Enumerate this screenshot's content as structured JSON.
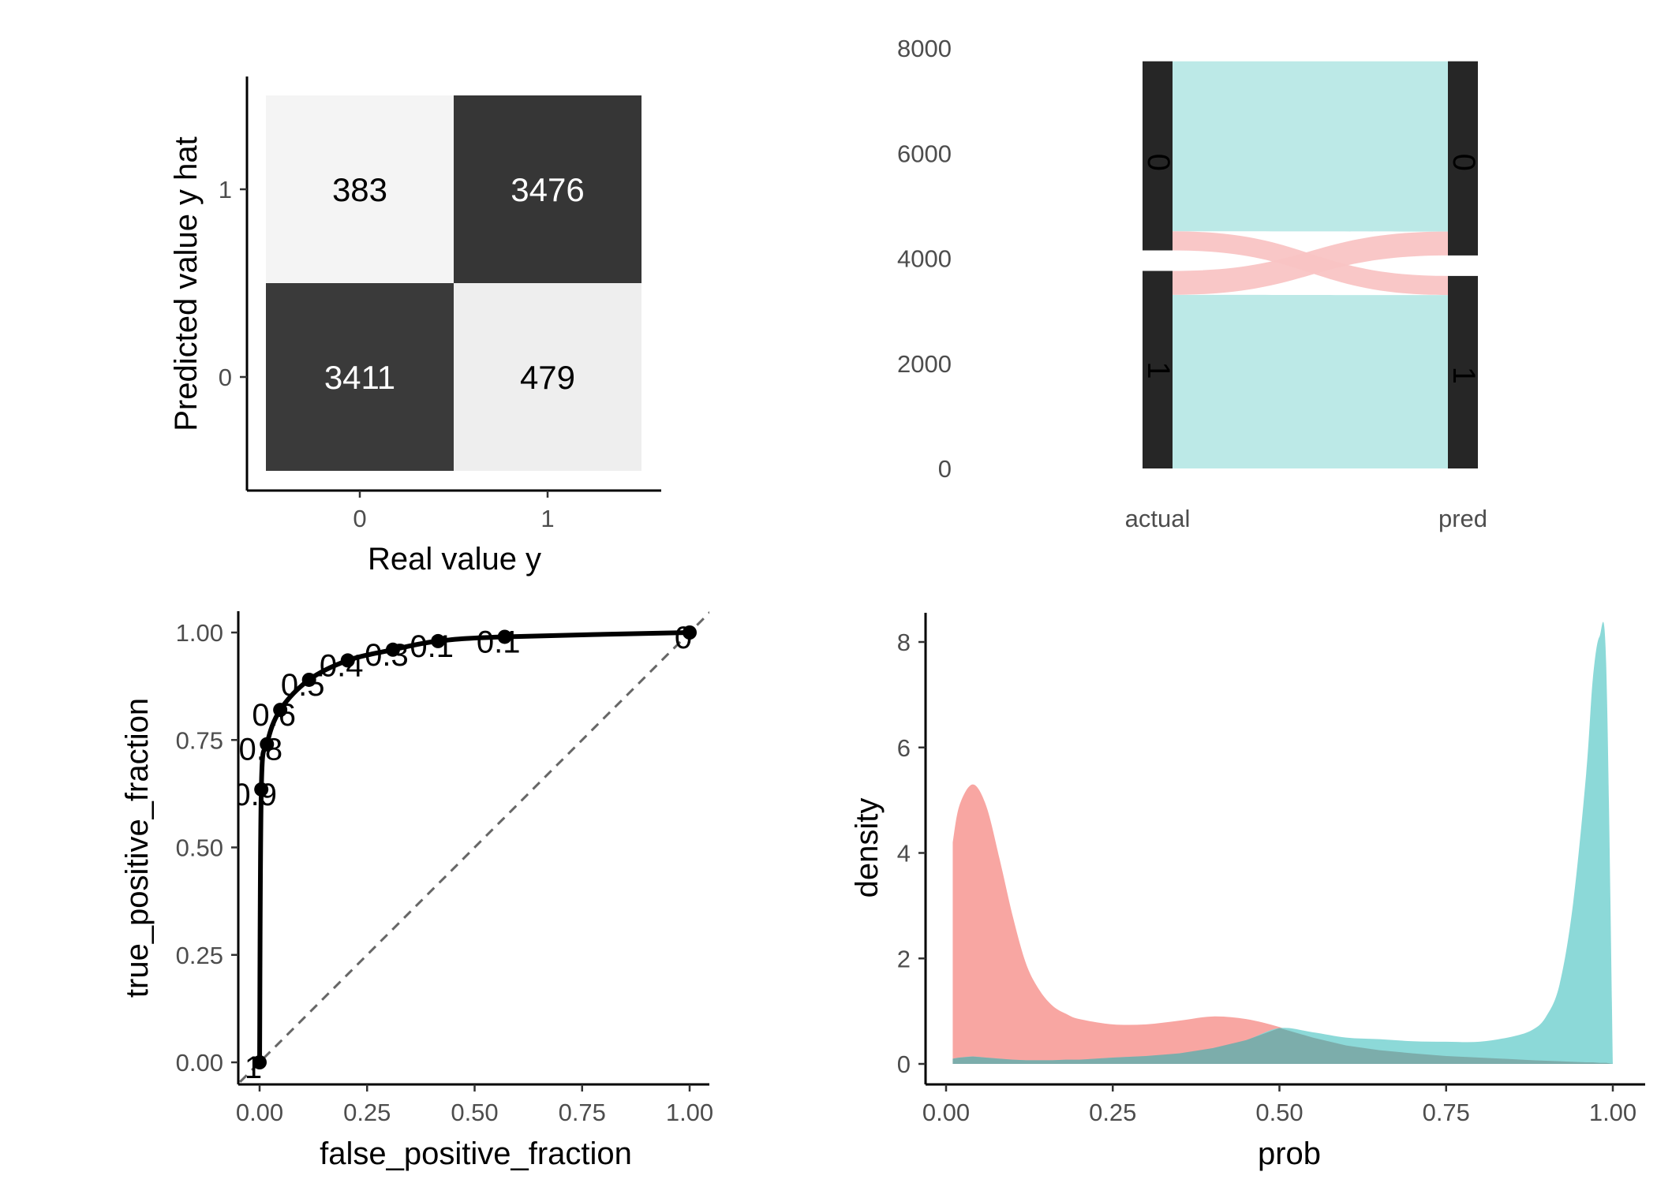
{
  "chart_data": [
    {
      "type": "heatmap",
      "xlabel": "Real value y",
      "ylabel": "Predicted value y hat",
      "x_categories": [
        "0",
        "1"
      ],
      "y_categories": [
        "0",
        "1"
      ],
      "cells": [
        {
          "x": "0",
          "y": "1",
          "value": 383
        },
        {
          "x": "1",
          "y": "1",
          "value": 3476
        },
        {
          "x": "0",
          "y": "0",
          "value": 3411
        },
        {
          "x": "1",
          "y": "0",
          "value": 479
        }
      ],
      "colors": {
        "high": "#363636",
        "low": "#f4f4f4",
        "text_on_dark": "#ffffff",
        "text_on_light": "#000000"
      }
    },
    {
      "type": "alluvial",
      "axes": [
        "actual",
        "pred"
      ],
      "yticks": [
        "0",
        "2000",
        "4000",
        "6000",
        "8000"
      ],
      "ylim": [
        0,
        8000
      ],
      "strata": {
        "actual": [
          {
            "label": "0",
            "value": 3794
          },
          {
            "label": "1",
            "value": 3955
          }
        ],
        "pred": [
          {
            "label": "0",
            "value": 3890
          },
          {
            "label": "1",
            "value": 3859
          }
        ]
      },
      "flows": [
        {
          "from": "0",
          "to": "0",
          "value": 3411,
          "color": "#b8e8e6"
        },
        {
          "from": "0",
          "to": "1",
          "value": 383,
          "color": "#f9c4c4"
        },
        {
          "from": "1",
          "to": "0",
          "value": 479,
          "color": "#f9c4c4"
        },
        {
          "from": "1",
          "to": "1",
          "value": 3476,
          "color": "#b8e8e6"
        }
      ],
      "stratum_color": "#262626"
    },
    {
      "type": "line",
      "xlabel": "false_positive_fraction",
      "ylabel": "true_positive_fraction",
      "xticks": [
        "0.00",
        "0.25",
        "0.50",
        "0.75",
        "1.00"
      ],
      "yticks": [
        "0.00",
        "0.25",
        "0.50",
        "0.75",
        "1.00"
      ],
      "xlim": [
        0,
        1
      ],
      "ylim": [
        0,
        1
      ],
      "points": [
        {
          "x": 1.0,
          "y": 1.0,
          "label": "0"
        },
        {
          "x": 0.57,
          "y": 0.99,
          "label": "0.1"
        },
        {
          "x": 0.415,
          "y": 0.98,
          "label": "0.1"
        },
        {
          "x": 0.31,
          "y": 0.96,
          "label": "0.3"
        },
        {
          "x": 0.205,
          "y": 0.935,
          "label": "0.4"
        },
        {
          "x": 0.115,
          "y": 0.89,
          "label": "0.5"
        },
        {
          "x": 0.048,
          "y": 0.82,
          "label": "0.6"
        },
        {
          "x": 0.017,
          "y": 0.74,
          "label": "0.8"
        },
        {
          "x": 0.004,
          "y": 0.635,
          "label": "0.9"
        },
        {
          "x": 0.0,
          "y": 0.0,
          "label": "1"
        }
      ],
      "diagonal": true,
      "line_color": "#000000"
    },
    {
      "type": "area",
      "xlabel": "prob",
      "ylabel": "density",
      "xticks": [
        "0.00",
        "0.25",
        "0.50",
        "0.75",
        "1.00"
      ],
      "yticks": [
        "0",
        "2",
        "4",
        "6",
        "8"
      ],
      "xlim": [
        0,
        1
      ],
      "ylim": [
        0,
        8
      ],
      "x": [
        0.01,
        0.02,
        0.04,
        0.06,
        0.08,
        0.1,
        0.12,
        0.14,
        0.16,
        0.18,
        0.2,
        0.25,
        0.3,
        0.35,
        0.4,
        0.45,
        0.5,
        0.55,
        0.6,
        0.65,
        0.7,
        0.75,
        0.8,
        0.85,
        0.88,
        0.9,
        0.92,
        0.94,
        0.96,
        0.97,
        0.98,
        0.99,
        1.0
      ],
      "series": [
        {
          "color": "#f8a6a2",
          "values": [
            4.2,
            4.9,
            5.3,
            4.9,
            3.9,
            2.8,
            1.9,
            1.4,
            1.1,
            0.95,
            0.85,
            0.75,
            0.75,
            0.82,
            0.9,
            0.85,
            0.7,
            0.5,
            0.35,
            0.26,
            0.2,
            0.15,
            0.12,
            0.09,
            0.07,
            0.06,
            0.05,
            0.04,
            0.03,
            0.03,
            0.02,
            0.02,
            0.02
          ]
        },
        {
          "color": "#86d7d6",
          "values": [
            0.1,
            0.12,
            0.14,
            0.12,
            0.1,
            0.08,
            0.07,
            0.07,
            0.07,
            0.08,
            0.08,
            0.12,
            0.15,
            0.2,
            0.3,
            0.45,
            0.68,
            0.6,
            0.5,
            0.47,
            0.43,
            0.42,
            0.42,
            0.52,
            0.65,
            0.9,
            1.5,
            3.0,
            5.5,
            7.3,
            8.1,
            7.6,
            0.0
          ]
        }
      ]
    }
  ]
}
